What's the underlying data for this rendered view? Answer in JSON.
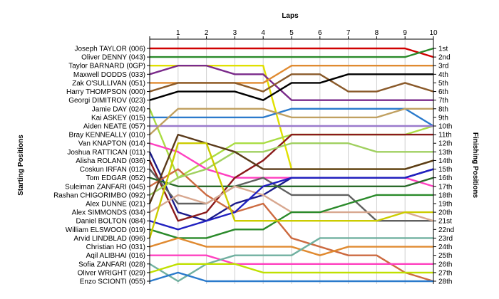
{
  "chart_data": {
    "type": "line",
    "title": "",
    "xlabel": "Laps",
    "ylabel_left": "Starting Positions",
    "ylabel_right": "Finishing Positions",
    "x": [
      0,
      1,
      2,
      3,
      4,
      5,
      6,
      7,
      8,
      9,
      10
    ],
    "x_tick_labels": [
      "1",
      "2",
      "3",
      "4",
      "5",
      "6",
      "7",
      "8",
      "9",
      "10"
    ],
    "position_range": [
      1,
      28
    ],
    "finishing_labels": [
      "1st",
      "2nd",
      "3rd",
      "4th",
      "5th",
      "6th",
      "7th",
      "8th",
      "9th",
      "10th",
      "11th",
      "12th",
      "13th",
      "14th",
      "15th",
      "16th",
      "17th",
      "18th",
      "19th",
      "20th",
      "21st",
      "22nd",
      "23rd",
      "24th",
      "25th",
      "26th",
      "27th",
      "28th"
    ],
    "series": [
      {
        "name": "Joseph TAYLOR (006)",
        "color": "#d00000",
        "positions": [
          1,
          1,
          1,
          1,
          1,
          1,
          1,
          1,
          1,
          1,
          2
        ]
      },
      {
        "name": "Oliver DENNY (043)",
        "color": "#2a8a2a",
        "positions": [
          2,
          2,
          2,
          2,
          2,
          2,
          2,
          2,
          2,
          2,
          1
        ]
      },
      {
        "name": "Taylor BARNARD (0GP)",
        "color": "#e0e000",
        "positions": [
          3,
          3,
          3,
          3,
          3,
          15,
          15,
          15,
          15,
          15,
          14
        ]
      },
      {
        "name": "Maxwell DODDS (033)",
        "color": "#7a2a8a",
        "positions": [
          4,
          3,
          3,
          4,
          4,
          7,
          7,
          7,
          7,
          7,
          7
        ]
      },
      {
        "name": "Zak O'SULLIVAN (051)",
        "color": "#e08a30",
        "positions": [
          5,
          5,
          5,
          5,
          5,
          3,
          3,
          3,
          3,
          3,
          3
        ]
      },
      {
        "name": "Harry THOMPSON (000)",
        "color": "#8a5a2a",
        "positions": [
          6,
          5,
          5,
          5,
          6,
          4,
          4,
          6,
          6,
          5,
          6
        ]
      },
      {
        "name": "Georgi DIMITROV (023)",
        "color": "#000000",
        "positions": [
          7,
          6,
          6,
          6,
          7,
          5,
          5,
          4,
          4,
          4,
          4
        ]
      },
      {
        "name": "Jamie DAY (024)",
        "color": "#aadd44",
        "positions": [
          8,
          16,
          14,
          12,
          12,
          11,
          11,
          11,
          11,
          11,
          10
        ]
      },
      {
        "name": "Kai ASKEY (015)",
        "color": "#2a7acc",
        "positions": [
          9,
          9,
          9,
          9,
          9,
          8,
          8,
          8,
          8,
          8,
          10
        ]
      },
      {
        "name": "Aiden NEATE (057)",
        "color": "#9a7acc",
        "positions": [
          10,
          10,
          10,
          10,
          10,
          10,
          10,
          10,
          10,
          10,
          10
        ]
      },
      {
        "name": "Bray KENNEALLY (010)",
        "color": "#c0a060",
        "positions": [
          11,
          8,
          8,
          8,
          8,
          9,
          9,
          9,
          9,
          8,
          8
        ]
      },
      {
        "name": "Van KNAPTON (014)",
        "color": "#ff40c0",
        "positions": [
          12,
          13,
          15,
          16,
          16,
          16,
          16,
          16,
          16,
          16,
          17
        ]
      },
      {
        "name": "Joshua RATTICAN (011)",
        "color": "#1a1a8a",
        "positions": [
          13,
          20,
          21,
          19,
          18,
          16,
          16,
          16,
          16,
          16,
          15
        ]
      },
      {
        "name": "Alisha ROLAND (036)",
        "color": "#8a1a1a",
        "positions": [
          14,
          21,
          20,
          16,
          14,
          11,
          11,
          11,
          11,
          11,
          11
        ]
      },
      {
        "name": "Coskun IRFAN (012)",
        "color": "#606060",
        "positions": [
          15,
          19,
          19,
          17,
          16,
          18,
          18,
          18,
          21,
          21,
          21
        ]
      },
      {
        "name": "Tom EDGAR (052)",
        "color": "#2a6a2a",
        "positions": [
          16,
          17,
          17,
          17,
          17,
          17,
          17,
          17,
          17,
          17,
          16
        ]
      },
      {
        "name": "Suleiman ZANFARI (045)",
        "color": "#cc6a40",
        "positions": [
          17,
          15,
          18,
          20,
          19,
          23,
          24,
          25,
          25,
          27,
          28
        ]
      },
      {
        "name": "Rashan CHIGORIMBO (092)",
        "color": "#a0d060",
        "positions": [
          18,
          16,
          15,
          13,
          13,
          12,
          12,
          12,
          13,
          13,
          13
        ]
      },
      {
        "name": "Alex DUNNE (021)",
        "color": "#5a3a1a",
        "positions": [
          19,
          11,
          12,
          13,
          15,
          15,
          15,
          15,
          15,
          15,
          14
        ]
      },
      {
        "name": "Alex SIMMONDS (034)",
        "color": "#d8a890",
        "positions": [
          20,
          18,
          19,
          17,
          18,
          20,
          20,
          20,
          20,
          20,
          21
        ]
      },
      {
        "name": "Daniel BOLTON (084)",
        "color": "#2020c0",
        "positions": [
          21,
          22,
          21,
          20,
          17,
          16,
          16,
          16,
          16,
          16,
          15
        ]
      },
      {
        "name": "William ELSWOOD (019)",
        "color": "#2a8a2a",
        "positions": [
          22,
          23,
          23,
          22,
          22,
          20,
          20,
          19,
          18,
          18,
          18
        ]
      },
      {
        "name": "Arvid LINDBLAD (096)",
        "color": "#cccc00",
        "positions": [
          23,
          12,
          12,
          21,
          21,
          21,
          21,
          21,
          21,
          20,
          20
        ]
      },
      {
        "name": "Christian HO (031)",
        "color": "#e08a30",
        "positions": [
          24,
          23,
          24,
          24,
          24,
          24,
          25,
          24,
          24,
          24,
          24
        ]
      },
      {
        "name": "Aqil ALIBHAI (016)",
        "color": "#ff40c0",
        "positions": [
          25,
          25,
          25,
          26,
          26,
          26,
          26,
          26,
          26,
          26,
          26
        ]
      },
      {
        "name": "Sofia ZANFARI (028)",
        "color": "#70b0a0",
        "positions": [
          26,
          28,
          26,
          25,
          25,
          25,
          23,
          23,
          23,
          23,
          23
        ]
      },
      {
        "name": "Oliver WRIGHT (029)",
        "color": "#c0e000",
        "positions": [
          27,
          26,
          26,
          26,
          27,
          27,
          27,
          27,
          27,
          27,
          27
        ]
      },
      {
        "name": "Enzo SCIONTI (055)",
        "color": "#2a7acc",
        "positions": [
          28,
          27,
          28,
          28,
          28,
          28,
          28,
          28,
          28,
          28,
          28
        ]
      }
    ]
  }
}
